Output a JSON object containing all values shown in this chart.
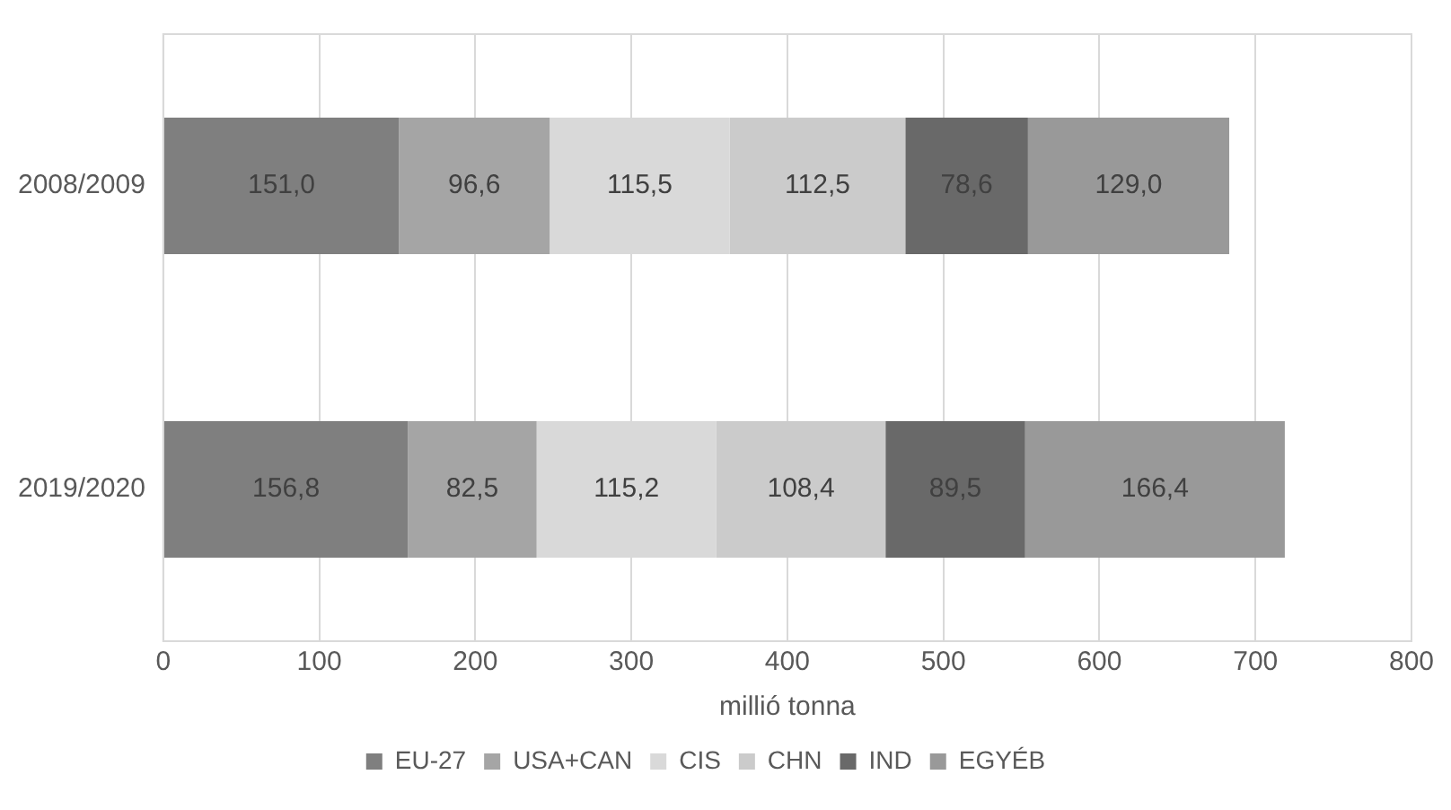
{
  "chart_data": {
    "type": "bar",
    "orientation": "horizontal",
    "stacked": true,
    "xlabel": "millió tonna",
    "categories": [
      "2008/2009",
      "2019/2020"
    ],
    "xlim": [
      0,
      800
    ],
    "xticks": [
      0,
      100,
      200,
      300,
      400,
      500,
      600,
      700,
      800
    ],
    "grid": "x",
    "legend": "bottom",
    "series": [
      {
        "name": "EU-27",
        "color": "#7f7f7f",
        "values": [
          151.0,
          156.8
        ],
        "value_labels": [
          "151,0",
          "156,8"
        ]
      },
      {
        "name": "USA+CAN",
        "color": "#a5a5a5",
        "values": [
          96.6,
          82.5
        ],
        "value_labels": [
          "96,6",
          "82,5"
        ]
      },
      {
        "name": "CIS",
        "color": "#d9d9d9",
        "values": [
          115.5,
          115.2
        ],
        "value_labels": [
          "115,5",
          "115,2"
        ]
      },
      {
        "name": "CHN",
        "color": "#cbcbcb",
        "values": [
          112.5,
          108.4
        ],
        "value_labels": [
          "112,5",
          "108,4"
        ]
      },
      {
        "name": "IND",
        "color": "#696969",
        "values": [
          78.6,
          89.5
        ],
        "value_labels": [
          "78,6",
          "89,5"
        ]
      },
      {
        "name": "EGYÉB",
        "color": "#999999",
        "values": [
          129.0,
          166.4
        ],
        "value_labels": [
          "129,0",
          "166,4"
        ]
      }
    ]
  }
}
